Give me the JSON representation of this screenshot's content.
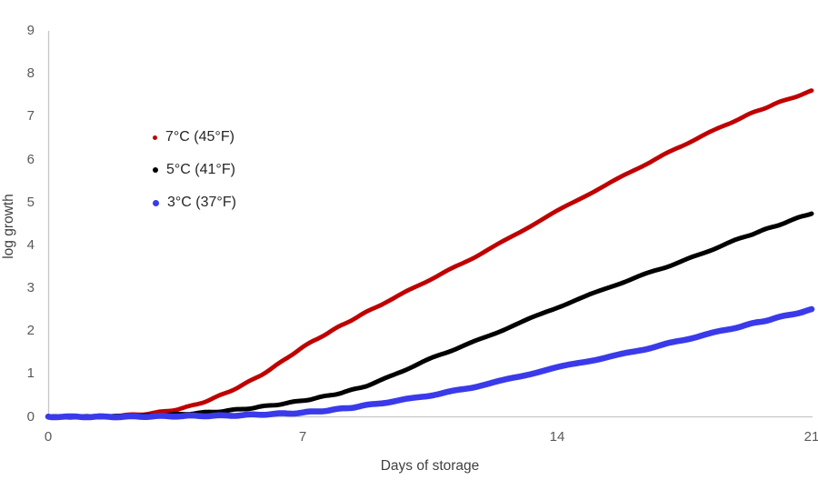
{
  "chart_data": {
    "type": "line",
    "title": "",
    "xlabel": "Days of storage",
    "ylabel": "log growth",
    "xlim": [
      0,
      21
    ],
    "ylim": [
      0,
      9
    ],
    "x_ticks": [
      0,
      7,
      14,
      21
    ],
    "y_ticks": [
      0,
      1,
      2,
      3,
      4,
      5,
      6,
      7,
      8,
      9
    ],
    "grid": false,
    "legend_position": "inside-upper-left",
    "series": [
      {
        "name": "7°C (45°F)",
        "color": "#c00000",
        "x": [
          0,
          1,
          2,
          3,
          4,
          5,
          6,
          7,
          8,
          9,
          10.5,
          12,
          14,
          16,
          17.5,
          19,
          20,
          21
        ],
        "y": [
          0,
          0.01,
          0.03,
          0.1,
          0.27,
          0.6,
          1.05,
          1.62,
          2.1,
          2.55,
          3.2,
          3.85,
          4.8,
          5.7,
          6.35,
          6.95,
          7.3,
          7.6
        ]
      },
      {
        "name": "5°C (41°F)",
        "color": "#000000",
        "x": [
          0,
          1,
          2,
          3,
          4,
          5,
          6,
          7,
          8,
          9,
          10.5,
          12,
          14,
          16,
          17.5,
          19,
          20,
          21
        ],
        "y": [
          0,
          0,
          0.01,
          0.03,
          0.08,
          0.15,
          0.25,
          0.38,
          0.55,
          0.8,
          1.35,
          1.85,
          2.55,
          3.2,
          3.65,
          4.15,
          4.45,
          4.75
        ]
      },
      {
        "name": "3°C (37°F)",
        "color": "#3a3aeb",
        "x": [
          0,
          1,
          2,
          3,
          4,
          5,
          6,
          7,
          8,
          9,
          10.5,
          12,
          14,
          16,
          17.5,
          19,
          20,
          21
        ],
        "y": [
          0,
          0,
          0,
          0.01,
          0.02,
          0.03,
          0.06,
          0.1,
          0.18,
          0.3,
          0.5,
          0.75,
          1.15,
          1.5,
          1.8,
          2.1,
          2.3,
          2.5
        ]
      }
    ]
  },
  "colors": {
    "axis_line": "#c6c6c6",
    "tick_label": "#595959",
    "axis_title": "#404040",
    "legend_text": "#262626",
    "background": "#ffffff"
  }
}
